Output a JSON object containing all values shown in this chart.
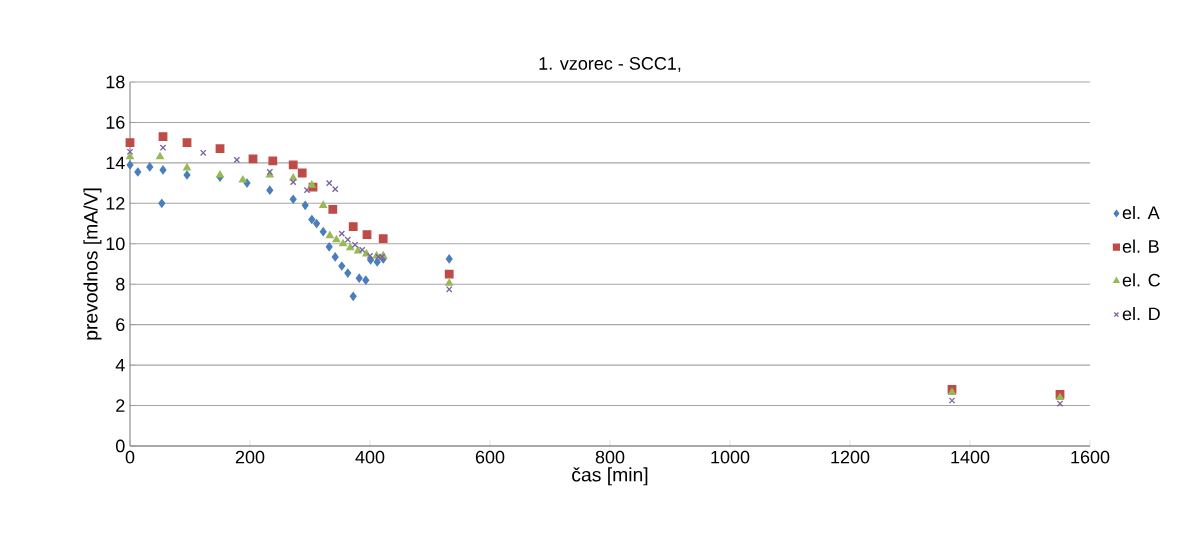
{
  "chart_data": {
    "type": "scatter",
    "title": "1. vzorec - SCC1,",
    "xlabel": "čas [min]",
    "ylabel": "prevodnos [mA/V]",
    "xlim": [
      0,
      1600
    ],
    "xticks": [
      0,
      200,
      400,
      600,
      800,
      1000,
      1200,
      1400,
      1600
    ],
    "ylim": [
      0,
      18
    ],
    "yticks": [
      0,
      2,
      4,
      6,
      8,
      10,
      12,
      14,
      16,
      18
    ],
    "grid": "y",
    "legend": "right",
    "series": [
      {
        "name": "el. A",
        "color": "#4a7ebb",
        "marker": "diamond",
        "x": [
          0,
          13,
          33,
          53,
          55,
          95,
          150,
          195,
          233,
          272,
          292,
          303,
          311,
          322,
          332,
          342,
          353,
          363,
          372,
          382,
          393,
          401,
          412,
          422,
          532
        ],
        "values": [
          13.9,
          13.55,
          13.8,
          12.0,
          13.65,
          13.4,
          13.3,
          13.0,
          12.65,
          12.2,
          11.9,
          11.2,
          11.0,
          10.6,
          9.85,
          9.35,
          8.9,
          8.55,
          7.4,
          8.3,
          8.2,
          9.2,
          9.1,
          9.25,
          9.25
        ]
      },
      {
        "name": "el. B",
        "color": "#be4b48",
        "marker": "square",
        "x": [
          0,
          55,
          95,
          150,
          205,
          238,
          272,
          287,
          305,
          338,
          372,
          395,
          422,
          532,
          1370,
          1550
        ],
        "values": [
          15.0,
          15.3,
          15.0,
          14.7,
          14.2,
          14.1,
          13.9,
          13.5,
          12.8,
          11.7,
          10.85,
          10.45,
          10.25,
          8.5,
          2.8,
          2.55
        ]
      },
      {
        "name": "el. C",
        "color": "#98b954",
        "marker": "triangle",
        "x": [
          0,
          50,
          95,
          150,
          188,
          233,
          272,
          303,
          322,
          333,
          344,
          355,
          367,
          380,
          394,
          411,
          422,
          532,
          1370,
          1550
        ],
        "values": [
          14.3,
          14.3,
          13.75,
          13.4,
          13.15,
          13.4,
          13.25,
          12.9,
          11.9,
          10.4,
          10.2,
          10.0,
          9.8,
          9.65,
          9.5,
          9.4,
          9.4,
          8.05,
          2.65,
          2.4
        ]
      },
      {
        "name": "el. D",
        "color": "#7d60a0",
        "marker": "cross",
        "x": [
          0,
          55,
          122,
          178,
          233,
          272,
          295,
          332,
          342,
          353,
          363,
          375,
          387,
          400,
          414,
          420,
          532,
          1370,
          1550
        ],
        "values": [
          14.55,
          14.75,
          14.5,
          14.15,
          13.55,
          13.05,
          12.65,
          13.0,
          12.7,
          10.5,
          10.2,
          9.95,
          9.7,
          9.4,
          9.35,
          9.35,
          7.75,
          2.25,
          2.1
        ]
      }
    ]
  }
}
